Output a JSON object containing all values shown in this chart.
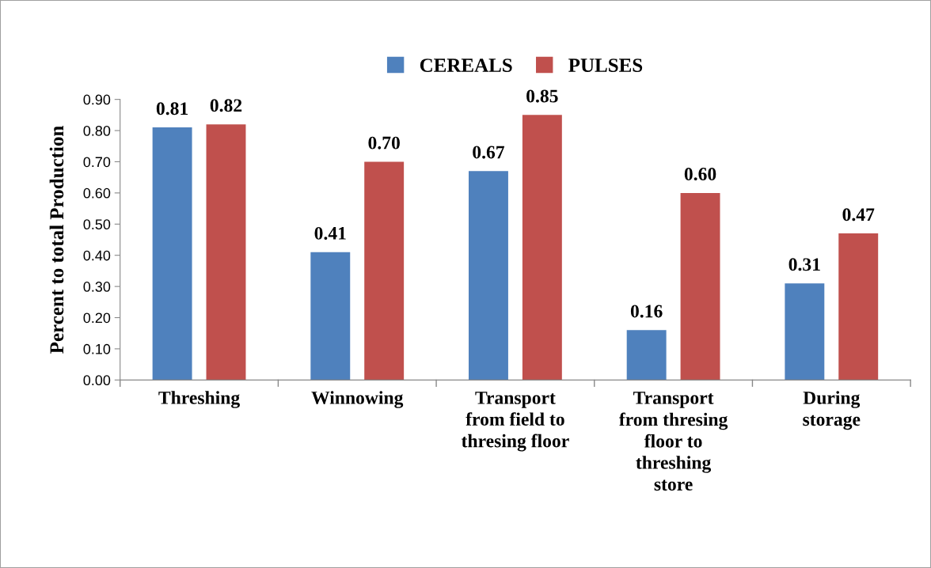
{
  "chart_data": {
    "type": "bar",
    "ylabel": "Percent to total Production",
    "categories": [
      "Threshing",
      "Winnowing",
      "Transport\nfrom field to\nthresing floor",
      "Transport\nfrom thresing\nfloor to\nthreshing\nstore",
      "During\nstorage"
    ],
    "series": [
      {
        "name": "CEREALS",
        "color": "#4f81bd",
        "values": [
          0.81,
          0.41,
          0.67,
          0.16,
          0.31
        ],
        "value_labels": [
          "0.81",
          "0.41",
          "0.67",
          "0.16",
          "0.31"
        ]
      },
      {
        "name": "PULSES",
        "color": "#c0504d",
        "values": [
          0.82,
          0.7,
          0.85,
          0.6,
          0.47
        ],
        "value_labels": [
          "0.82",
          "0.70",
          "0.85",
          "0.60",
          "0.47"
        ]
      }
    ],
    "ylim": [
      0,
      0.9
    ],
    "yticks": [
      {
        "value": 0,
        "label": "0.00"
      },
      {
        "value": 0.1,
        "label": "0.10"
      },
      {
        "value": 0.2,
        "label": "0.20"
      },
      {
        "value": 0.3,
        "label": "0.30"
      },
      {
        "value": 0.4,
        "label": "0.40"
      },
      {
        "value": 0.5,
        "label": "0.50"
      },
      {
        "value": 0.6,
        "label": "0.60"
      },
      {
        "value": 0.7,
        "label": "0.70"
      },
      {
        "value": 0.8,
        "label": "0.80"
      },
      {
        "value": 0.9,
        "label": "0.90"
      }
    ],
    "grid": false,
    "legend": "top"
  }
}
